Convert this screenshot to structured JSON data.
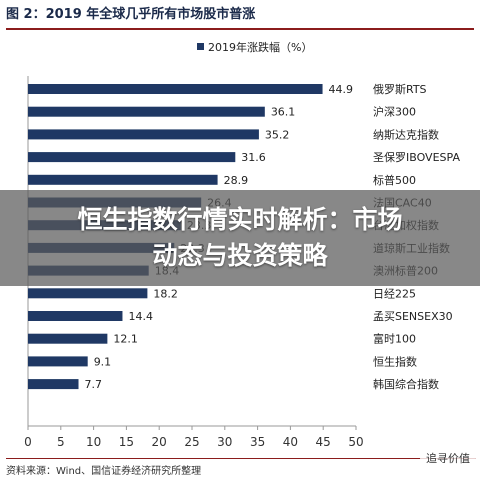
{
  "figure_title": "图 2：2019 年全球几乎所有市场股市普涨",
  "overlay": {
    "line1": "恒生指数行情实时解析：市场",
    "line2": "动态与投资策略"
  },
  "source_text": "资料来源：Wind、国信证券经济研究所整理",
  "watermark_text": "追寻价值",
  "chart_data": {
    "type": "bar",
    "orientation": "horizontal",
    "categories": [
      "俄罗斯RTS",
      "沪深300",
      "纳斯达克指数",
      "圣保罗IBOVESPA",
      "标普500",
      "法国CAC40",
      "台湾加权指数",
      "道琼斯工业指数",
      "澳洲标普200",
      "日经225",
      "孟买SENSEX30",
      "富时100",
      "恒生指数",
      "韩国综合指数"
    ],
    "series": [
      {
        "name": "2019年涨跌幅（%）",
        "values": [
          44.9,
          36.1,
          35.2,
          31.6,
          28.9,
          26.4,
          23.3,
          22.3,
          18.4,
          18.2,
          14.4,
          12.1,
          9.1,
          7.7
        ]
      }
    ],
    "xticks": [
      0,
      5,
      10,
      15,
      20,
      25,
      30,
      35,
      40,
      45,
      50
    ],
    "xlim": [
      0,
      50
    ],
    "legend_position": "top",
    "bar_color": "#1f3864",
    "grid": false
  }
}
